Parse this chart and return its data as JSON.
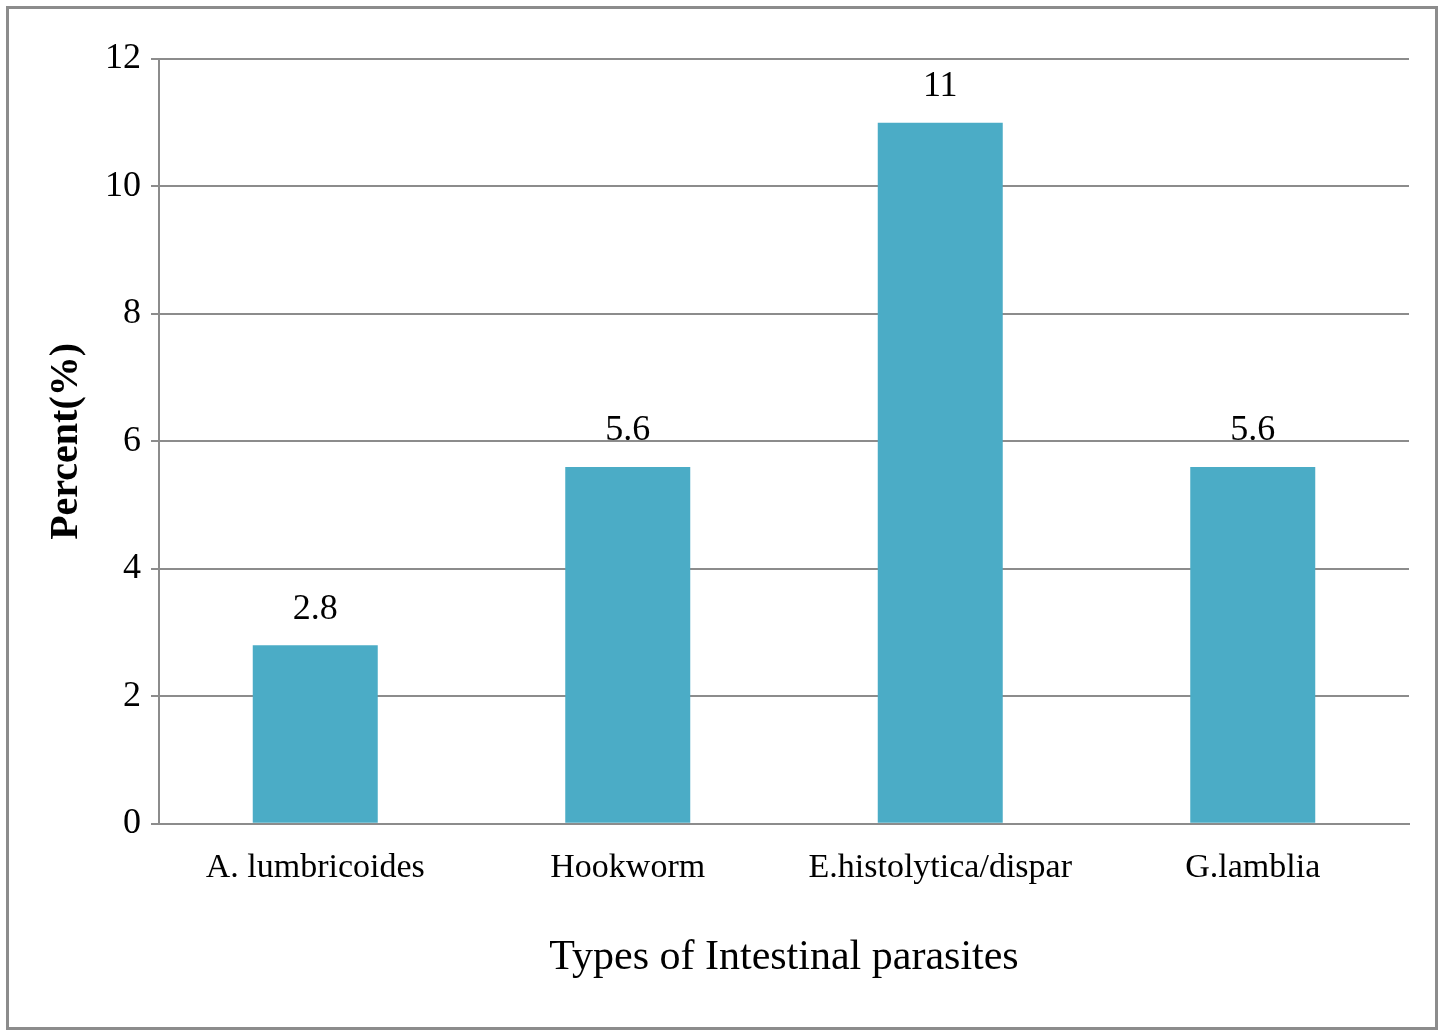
{
  "chart_data": {
    "type": "bar",
    "xlabel": "Types of Intestinal parasites",
    "ylabel": "Percent(%)",
    "categories": [
      "A. lumbricoides",
      "Hookworm",
      "E.histolytica/dispar",
      "G.lamblia"
    ],
    "values": [
      2.8,
      5.6,
      11,
      5.6
    ],
    "color": "#4bacc6",
    "ylim": [
      0,
      12
    ],
    "yticks": [
      0,
      2,
      4,
      6,
      8,
      10,
      12
    ],
    "grid": "y",
    "legend": false,
    "data_labels": true
  }
}
